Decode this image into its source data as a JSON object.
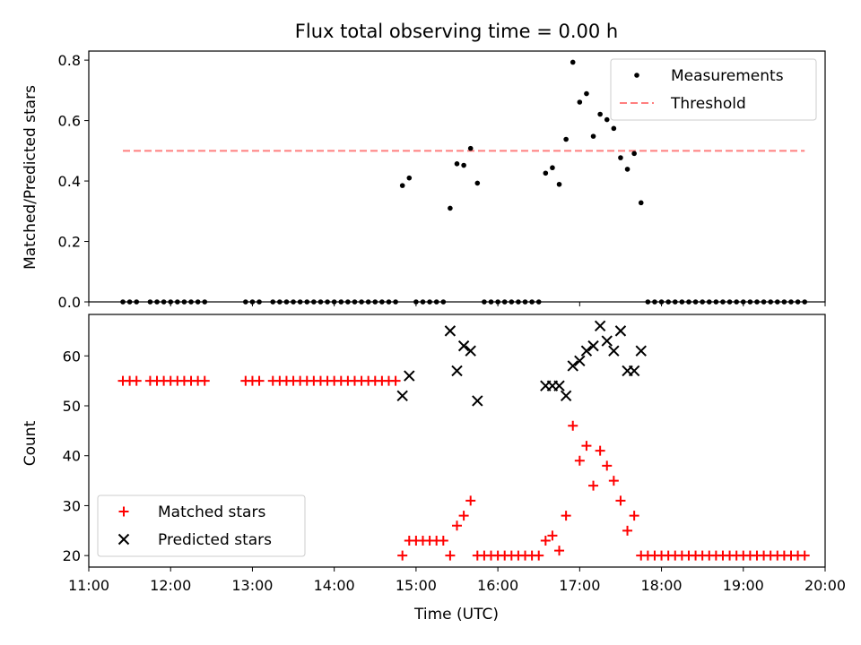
{
  "chart_data": [
    {
      "type": "scatter",
      "title": "Flux total observing time = 0.00 h",
      "xlabel": "",
      "ylabel": "Matched/Predicted stars",
      "xlim": [
        "11:00",
        "20:00"
      ],
      "ylim": [
        0,
        0.83
      ],
      "yticks": [
        "0.0",
        "0.2",
        "0.4",
        "0.6",
        "0.8"
      ],
      "legend": {
        "placement": "upper-right",
        "entries": [
          "Measurements",
          "Threshold"
        ]
      },
      "threshold": {
        "name": "Threshold",
        "y": 0.5,
        "x_start": "11:25",
        "x_end": "19:45",
        "color": "#ff7f7f",
        "style": "dashed"
      },
      "series": [
        {
          "name": "Measurements",
          "marker": "dot",
          "color": "#000000",
          "points": [
            [
              "11:25",
              0
            ],
            [
              "11:30",
              0
            ],
            [
              "11:35",
              0
            ],
            [
              "11:45",
              0
            ],
            [
              "11:50",
              0
            ],
            [
              "11:55",
              0
            ],
            [
              "12:00",
              0
            ],
            [
              "12:05",
              0
            ],
            [
              "12:10",
              0
            ],
            [
              "12:15",
              0
            ],
            [
              "12:20",
              0
            ],
            [
              "12:25",
              0
            ],
            [
              "12:55",
              0
            ],
            [
              "13:00",
              0
            ],
            [
              "13:05",
              0
            ],
            [
              "13:15",
              0
            ],
            [
              "13:20",
              0
            ],
            [
              "13:25",
              0
            ],
            [
              "13:30",
              0
            ],
            [
              "13:35",
              0
            ],
            [
              "13:40",
              0
            ],
            [
              "13:45",
              0
            ],
            [
              "13:50",
              0
            ],
            [
              "13:55",
              0
            ],
            [
              "14:00",
              0
            ],
            [
              "14:05",
              0
            ],
            [
              "14:10",
              0
            ],
            [
              "14:15",
              0
            ],
            [
              "14:20",
              0
            ],
            [
              "14:25",
              0
            ],
            [
              "14:30",
              0
            ],
            [
              "14:35",
              0
            ],
            [
              "14:40",
              0
            ],
            [
              "14:45",
              0
            ],
            [
              "14:50",
              0.385
            ],
            [
              "14:55",
              0.41
            ],
            [
              "15:00",
              0
            ],
            [
              "15:05",
              0
            ],
            [
              "15:10",
              0
            ],
            [
              "15:15",
              0
            ],
            [
              "15:20",
              0
            ],
            [
              "15:25",
              0.31
            ],
            [
              "15:30",
              0.457
            ],
            [
              "15:35",
              0.452
            ],
            [
              "15:40",
              0.508
            ],
            [
              "15:45",
              0.393
            ],
            [
              "15:50",
              0
            ],
            [
              "15:55",
              0
            ],
            [
              "16:00",
              0
            ],
            [
              "16:05",
              0
            ],
            [
              "16:10",
              0
            ],
            [
              "16:15",
              0
            ],
            [
              "16:20",
              0
            ],
            [
              "16:25",
              0
            ],
            [
              "16:30",
              0
            ],
            [
              "16:35",
              0.426
            ],
            [
              "16:40",
              0.444
            ],
            [
              "16:45",
              0.389
            ],
            [
              "16:50",
              0.538
            ],
            [
              "16:55",
              0.793
            ],
            [
              "17:00",
              0.661
            ],
            [
              "17:05",
              0.689
            ],
            [
              "17:10",
              0.548
            ],
            [
              "17:15",
              0.621
            ],
            [
              "17:20",
              0.603
            ],
            [
              "17:25",
              0.574
            ],
            [
              "17:30",
              0.477
            ],
            [
              "17:35",
              0.439
            ],
            [
              "17:40",
              0.491
            ],
            [
              "17:45",
              0.328
            ],
            [
              "17:50",
              0
            ],
            [
              "17:55",
              0
            ],
            [
              "18:00",
              0
            ],
            [
              "18:05",
              0
            ],
            [
              "18:10",
              0
            ],
            [
              "18:15",
              0
            ],
            [
              "18:20",
              0
            ],
            [
              "18:25",
              0
            ],
            [
              "18:30",
              0
            ],
            [
              "18:35",
              0
            ],
            [
              "18:40",
              0
            ],
            [
              "18:45",
              0
            ],
            [
              "18:50",
              0
            ],
            [
              "18:55",
              0
            ],
            [
              "19:00",
              0
            ],
            [
              "19:05",
              0
            ],
            [
              "19:10",
              0
            ],
            [
              "19:15",
              0
            ],
            [
              "19:20",
              0
            ],
            [
              "19:25",
              0
            ],
            [
              "19:30",
              0
            ],
            [
              "19:35",
              0
            ],
            [
              "19:40",
              0
            ],
            [
              "19:45",
              0
            ]
          ]
        }
      ]
    },
    {
      "type": "scatter",
      "title": "",
      "xlabel": "Time (UTC)",
      "ylabel": "Count",
      "xlim": [
        "11:00",
        "20:00"
      ],
      "ylim": [
        17.7,
        68.3
      ],
      "xticks": [
        "11:00",
        "12:00",
        "13:00",
        "14:00",
        "15:00",
        "16:00",
        "17:00",
        "18:00",
        "19:00",
        "20:00"
      ],
      "yticks": [
        "20",
        "30",
        "40",
        "50",
        "60"
      ],
      "legend": {
        "placement": "lower-left",
        "entries": [
          "Matched stars",
          "Predicted stars"
        ]
      },
      "series": [
        {
          "name": "Matched stars",
          "marker": "plus",
          "color": "#ff0000",
          "points": [
            [
              "11:25",
              55
            ],
            [
              "11:30",
              55
            ],
            [
              "11:35",
              55
            ],
            [
              "11:45",
              55
            ],
            [
              "11:50",
              55
            ],
            [
              "11:55",
              55
            ],
            [
              "12:00",
              55
            ],
            [
              "12:05",
              55
            ],
            [
              "12:10",
              55
            ],
            [
              "12:15",
              55
            ],
            [
              "12:20",
              55
            ],
            [
              "12:25",
              55
            ],
            [
              "12:55",
              55
            ],
            [
              "13:00",
              55
            ],
            [
              "13:05",
              55
            ],
            [
              "13:15",
              55
            ],
            [
              "13:20",
              55
            ],
            [
              "13:25",
              55
            ],
            [
              "13:30",
              55
            ],
            [
              "13:35",
              55
            ],
            [
              "13:40",
              55
            ],
            [
              "13:45",
              55
            ],
            [
              "13:50",
              55
            ],
            [
              "13:55",
              55
            ],
            [
              "14:00",
              55
            ],
            [
              "14:05",
              55
            ],
            [
              "14:10",
              55
            ],
            [
              "14:15",
              55
            ],
            [
              "14:20",
              55
            ],
            [
              "14:25",
              55
            ],
            [
              "14:30",
              55
            ],
            [
              "14:35",
              55
            ],
            [
              "14:40",
              55
            ],
            [
              "14:45",
              55
            ],
            [
              "14:50",
              20
            ],
            [
              "14:55",
              23
            ],
            [
              "15:00",
              23
            ],
            [
              "15:05",
              23
            ],
            [
              "15:10",
              23
            ],
            [
              "15:15",
              23
            ],
            [
              "15:20",
              23
            ],
            [
              "15:25",
              20
            ],
            [
              "15:30",
              26
            ],
            [
              "15:35",
              28
            ],
            [
              "15:40",
              31
            ],
            [
              "15:45",
              20
            ],
            [
              "15:50",
              20
            ],
            [
              "15:55",
              20
            ],
            [
              "16:00",
              20
            ],
            [
              "16:05",
              20
            ],
            [
              "16:10",
              20
            ],
            [
              "16:15",
              20
            ],
            [
              "16:20",
              20
            ],
            [
              "16:25",
              20
            ],
            [
              "16:30",
              20
            ],
            [
              "16:35",
              23
            ],
            [
              "16:40",
              24
            ],
            [
              "16:45",
              21
            ],
            [
              "16:50",
              28
            ],
            [
              "16:55",
              46
            ],
            [
              "17:00",
              39
            ],
            [
              "17:05",
              42
            ],
            [
              "17:10",
              34
            ],
            [
              "17:15",
              41
            ],
            [
              "17:20",
              38
            ],
            [
              "17:25",
              35
            ],
            [
              "17:30",
              31
            ],
            [
              "17:35",
              25
            ],
            [
              "17:40",
              28
            ],
            [
              "17:45",
              20
            ],
            [
              "17:50",
              20
            ],
            [
              "17:55",
              20
            ],
            [
              "18:00",
              20
            ],
            [
              "18:05",
              20
            ],
            [
              "18:10",
              20
            ],
            [
              "18:15",
              20
            ],
            [
              "18:20",
              20
            ],
            [
              "18:25",
              20
            ],
            [
              "18:30",
              20
            ],
            [
              "18:35",
              20
            ],
            [
              "18:40",
              20
            ],
            [
              "18:45",
              20
            ],
            [
              "18:50",
              20
            ],
            [
              "18:55",
              20
            ],
            [
              "19:00",
              20
            ],
            [
              "19:05",
              20
            ],
            [
              "19:10",
              20
            ],
            [
              "19:15",
              20
            ],
            [
              "19:20",
              20
            ],
            [
              "19:25",
              20
            ],
            [
              "19:30",
              20
            ],
            [
              "19:35",
              20
            ],
            [
              "19:40",
              20
            ],
            [
              "19:45",
              20
            ]
          ]
        },
        {
          "name": "Predicted stars",
          "marker": "x",
          "color": "#000000",
          "points": [
            [
              "14:50",
              52
            ],
            [
              "14:55",
              56
            ],
            [
              "15:25",
              65
            ],
            [
              "15:30",
              57
            ],
            [
              "15:35",
              62
            ],
            [
              "15:40",
              61
            ],
            [
              "15:45",
              51
            ],
            [
              "16:35",
              54
            ],
            [
              "16:40",
              54
            ],
            [
              "16:45",
              54
            ],
            [
              "16:50",
              52
            ],
            [
              "16:55",
              58
            ],
            [
              "17:00",
              59
            ],
            [
              "17:05",
              61
            ],
            [
              "17:10",
              62
            ],
            [
              "17:15",
              66
            ],
            [
              "17:20",
              63
            ],
            [
              "17:25",
              61
            ],
            [
              "17:30",
              65
            ],
            [
              "17:35",
              57
            ],
            [
              "17:40",
              57
            ],
            [
              "17:45",
              61
            ]
          ]
        }
      ]
    }
  ]
}
